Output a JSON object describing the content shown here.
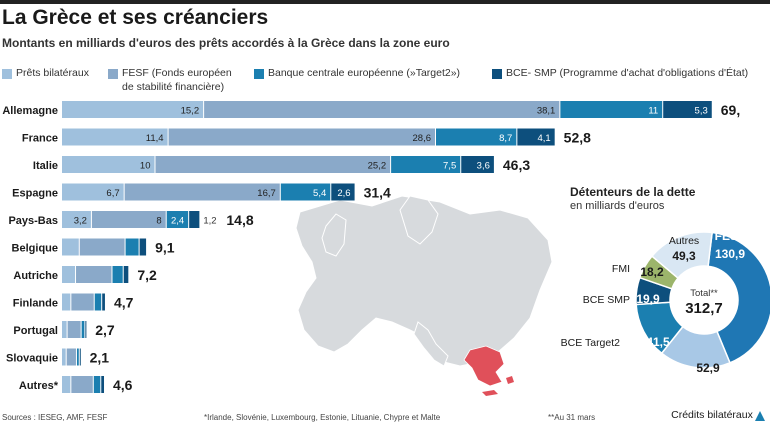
{
  "title": "La Grèce et ses créanciers",
  "subtitle": "Montants en milliards d'euros des prêts accordés à la Grèce dans la zone euro",
  "legend": [
    {
      "label": "Prêts bilatéraux",
      "color": "#9fc0dd"
    },
    {
      "label": "FESF (Fonds européen",
      "label2": "de stabilité financière)",
      "color": "#8aa9c9"
    },
    {
      "label": "Banque centrale européenne (»Target2»)",
      "color": "#1b7fb0"
    },
    {
      "label": "BCE- SMP (Programme d'achat d'obligations d'État)",
      "color": "#0d4f7d"
    }
  ],
  "chart_data": [
    {
      "type": "bar",
      "orientation": "horizontal",
      "stacked": true,
      "categories": [
        "Allemagne",
        "France",
        "Italie",
        "Espagne",
        "Pays-Bas",
        "Belgique",
        "Autriche",
        "Finlande",
        "Portugal",
        "Slovaquie",
        "Autres*"
      ],
      "totals": [
        "69,",
        "52,8",
        "46,3",
        "31,4",
        "14,8",
        "9,1",
        "7,2",
        "4,7",
        "2,7",
        "2,1",
        "4,6"
      ],
      "series": [
        {
          "name": "Prêts bilatéraux",
          "color": "#9fc0dd",
          "values": [
            15.2,
            11.4,
            10,
            6.7,
            3.2,
            1.9,
            1.5,
            1.0,
            0.6,
            0.5,
            1.0
          ],
          "labels": [
            "15,2",
            "11,4",
            "10",
            "6,7",
            "3,2",
            "",
            "",
            "",
            "",
            "",
            ""
          ]
        },
        {
          "name": "FESF (Fonds européen de stabilité financière)",
          "color": "#8aa9c9",
          "values": [
            38.1,
            28.6,
            25.2,
            16.7,
            8,
            4.9,
            3.9,
            2.5,
            1.5,
            1.1,
            2.4
          ],
          "labels": [
            "38,1",
            "28,6",
            "25,2",
            "16,7",
            "8",
            "",
            "",
            "",
            "",
            "",
            ""
          ]
        },
        {
          "name": "Banque centrale européenne (»Target2»)",
          "color": "#1b7fb0",
          "values": [
            11,
            8.7,
            7.5,
            5.4,
            2.4,
            1.5,
            1.2,
            0.8,
            0.4,
            0.3,
            0.8
          ],
          "labels": [
            "11",
            "8,7",
            "7,5",
            "5,4",
            "2,4",
            "",
            "",
            "",
            "",
            "",
            ""
          ]
        },
        {
          "name": "BCE- SMP (Programme d'achat d'obligations d'État)",
          "color": "#0d4f7d",
          "values": [
            5.3,
            4.1,
            3.6,
            2.6,
            1.2,
            0.8,
            0.6,
            0.4,
            0.2,
            0.2,
            0.4
          ],
          "labels": [
            "5,3",
            "4,1",
            "3,6",
            "2,6",
            "1,2",
            "",
            "",
            "",
            "",
            "",
            ""
          ]
        }
      ]
    },
    {
      "type": "pie",
      "donut": true,
      "title": "Détenteurs de la dette",
      "subtitle": "en milliards d'euros",
      "center_label": "Total**",
      "center_value": "312,7",
      "slices": [
        {
          "label": "FESF",
          "value": 130.9,
          "value_label": "130,9",
          "color": "#1f77b4"
        },
        {
          "label": "Crédits bilatéraux",
          "value": 52.9,
          "value_label": "52,9",
          "color": "#a8c8e6"
        },
        {
          "label": "BCE Target2",
          "value": 41.5,
          "value_label": "41,5",
          "color": "#1b7fb0"
        },
        {
          "label": "BCE SMP",
          "value": 19.9,
          "value_label": "19,9",
          "color": "#0d4f7d"
        },
        {
          "label": "FMI",
          "value": 18.2,
          "value_label": "18,2",
          "color": "#9cb56b"
        },
        {
          "label": "Autres",
          "value": 49.3,
          "value_label": "49,3",
          "color": "#d9e7f3"
        }
      ]
    }
  ],
  "footer": {
    "sources": "Sources : IESEG, AMF, FESF",
    "note": "*Irlande, Slovénie, Luxembourg, Estonie, Lituanie, Chypre et Malte",
    "date_note": "**Au 31 mars"
  }
}
